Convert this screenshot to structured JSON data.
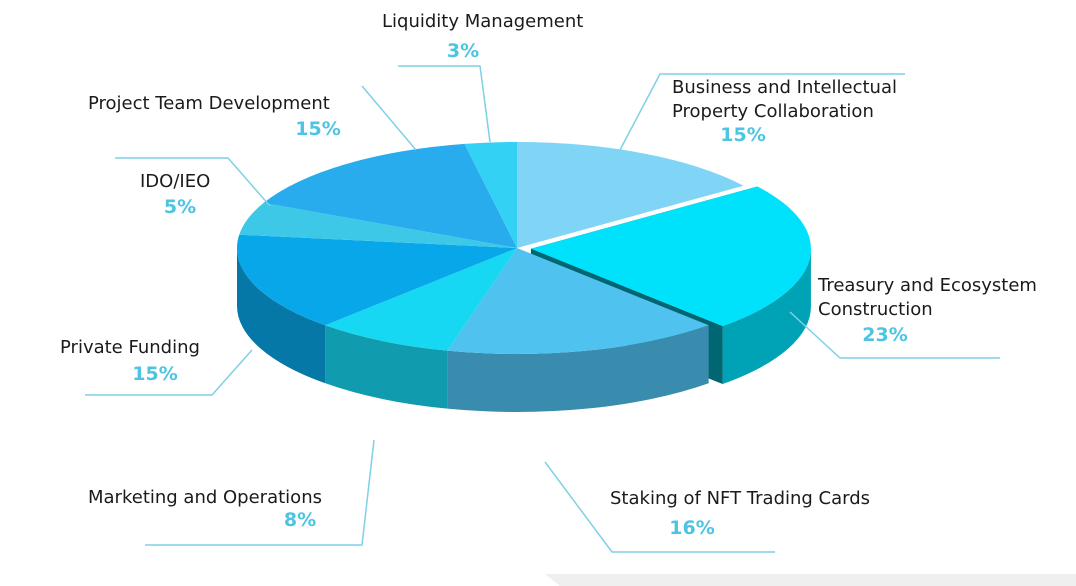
{
  "chart_data": {
    "type": "pie3d",
    "categories": [
      "Business and Intellectual Property Collaboration",
      "Treasury and Ecosystem Construction",
      "Staking of NFT Trading Cards",
      "Marketing and Operations",
      "Private Funding",
      "IDO/IEO",
      "Project Team Development",
      "Liquidity Management"
    ],
    "values": [
      15,
      23,
      16,
      8,
      15,
      5,
      15,
      3
    ],
    "value_labels": [
      "15%",
      "23%",
      "16%",
      "8%",
      "15%",
      "5%",
      "15%",
      "3%"
    ],
    "colors": [
      "#80d4f6",
      "#00e2fb",
      "#4fc2f0",
      "#16d8f2",
      "#07a7ea",
      "#3ec8e8",
      "#29acee",
      "#33d2f4"
    ]
  }
}
